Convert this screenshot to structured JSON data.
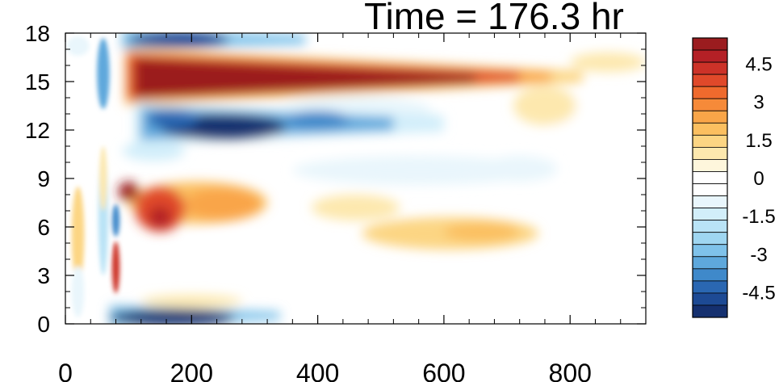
{
  "chart_data": {
    "type": "heatmap",
    "title": "Time = 176.3 hr",
    "xlabel": "",
    "ylabel": "",
    "xlim": [
      0,
      920
    ],
    "ylim": [
      0,
      18
    ],
    "x_ticks": [
      0,
      200,
      400,
      600,
      800
    ],
    "x_tick_labels": [
      "0",
      "200",
      "400",
      "600",
      "800"
    ],
    "y_ticks": [
      0,
      3,
      6,
      9,
      12,
      15,
      18
    ],
    "y_tick_labels": [
      "0",
      "3",
      "6",
      "9",
      "12",
      "15",
      "18"
    ],
    "grid": false,
    "legend_position": "right",
    "colorbar": {
      "range": [
        -5.5,
        5.5
      ],
      "step": 0.5,
      "tick_values": [
        4.5,
        3,
        1.5,
        0,
        -1.5,
        -3,
        -4.5
      ],
      "tick_labels": [
        "4.5",
        "3",
        "1.5",
        "0",
        "-1.5",
        "-3",
        "-4.5"
      ],
      "colors_high_to_low": [
        "#9b1c1f",
        "#b42026",
        "#cc3228",
        "#e0492a",
        "#ef6a2d",
        "#f68a39",
        "#f9a548",
        "#fbbf60",
        "#fcd583",
        "#fde8ae",
        "#fef6dc",
        "#ffffff",
        "#ffffff",
        "#e9f6fc",
        "#d2eefa",
        "#b9e3f6",
        "#9fd6f1",
        "#7fc2ea",
        "#5ea8dc",
        "#3f89ca",
        "#2a67b2",
        "#1d4a94",
        "#15306f"
      ]
    },
    "features": [
      {
        "label": "strong positive band",
        "x_range": [
          100,
          800
        ],
        "y_center": 15.3,
        "peak": 5.5
      },
      {
        "label": "strong negative band",
        "x_range": [
          100,
          560
        ],
        "y_center": 12.3,
        "peak": -5.2
      },
      {
        "label": "negative near bottom",
        "x_range": [
          70,
          340
        ],
        "y_center": 0.4,
        "peak": -5.0
      },
      {
        "label": "negative near top",
        "x_range": [
          80,
          380
        ],
        "y_center": 17.5,
        "peak": -4.5
      },
      {
        "label": "positive mid band",
        "x_range": [
          80,
          340
        ],
        "y_center": 7.6,
        "peak": 4.0
      },
      {
        "label": "weak positive patch",
        "x_range": [
          480,
          740
        ],
        "y_center": 5.6,
        "peak": 1.5
      },
      {
        "label": "weak negative patch",
        "x_range": [
          380,
          780
        ],
        "y_center": 9.5,
        "peak": -1.3
      }
    ]
  }
}
